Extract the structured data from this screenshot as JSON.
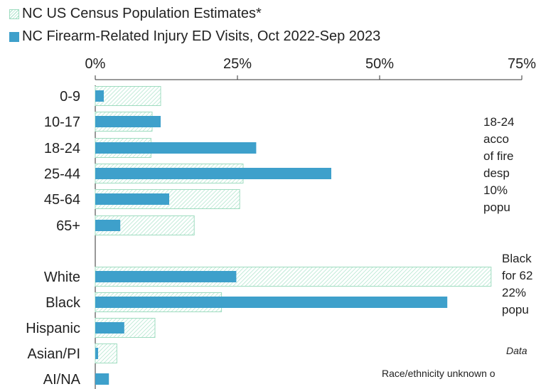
{
  "legend": [
    {
      "label": "NC US Census Population Estimates*",
      "style": "hatch"
    },
    {
      "label": "NC Firearm-Related Injury ED Visits, Oct 2022-Sep 2023",
      "style": "solid"
    }
  ],
  "colors": {
    "census_fill": "#a8e2c8",
    "census_border": "#9fdcc0",
    "ed_visits": "#3ea0cb",
    "axis": "#333333"
  },
  "notes": {
    "age_note_lines": [
      "18-24",
      "acco",
      "of fire",
      "desp",
      "10%",
      "popu"
    ],
    "race_note_lines": [
      "Black",
      "for 62",
      "22%",
      "popu"
    ],
    "data_note": "Data",
    "footnote": "Race/ethnicity unknown o"
  },
  "chart_data": {
    "type": "bar",
    "orientation": "horizontal",
    "xlim": [
      0,
      75
    ],
    "x_ticks": [
      "0%",
      "25%",
      "50%",
      "75%"
    ],
    "x_tick_values": [
      0,
      25,
      50,
      75
    ],
    "legend_position": "top-left",
    "categories": [
      "0-9",
      "10-17",
      "18-24",
      "25-44",
      "45-64",
      "65+",
      "White",
      "Black",
      "Hispanic",
      "Asian/PI",
      "AI/NA"
    ],
    "groups": [
      {
        "name": "age",
        "categories": [
          "0-9",
          "10-17",
          "18-24",
          "25-44",
          "45-64",
          "65+"
        ]
      },
      {
        "name": "race",
        "categories": [
          "White",
          "Black",
          "Hispanic",
          "Asian/PI",
          "AI/NA"
        ]
      }
    ],
    "series": [
      {
        "name": "NC US Census Population Estimates*",
        "values": [
          11.5,
          10.0,
          9.8,
          26.0,
          25.4,
          17.4,
          69.6,
          22.2,
          10.5,
          3.8,
          null
        ]
      },
      {
        "name": "NC Firearm-Related Injury ED Visits, Oct 2022-Sep 2023",
        "values": [
          1.5,
          11.5,
          28.3,
          41.5,
          13.0,
          4.4,
          24.8,
          61.9,
          5.1,
          0.5,
          2.4
        ]
      }
    ]
  }
}
